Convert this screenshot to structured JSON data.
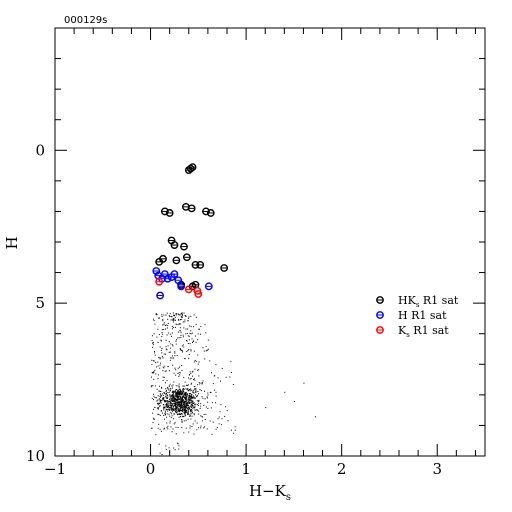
{
  "chart_data": {
    "type": "scatter",
    "title": "000129s",
    "xlabel": "H−K",
    "xlabel_sub": "s",
    "ylabel": "H",
    "xlim": [
      -1,
      3.5
    ],
    "ylim": [
      10,
      -4
    ],
    "y_inverted": true,
    "xticks": [
      -1,
      0,
      1,
      2,
      3
    ],
    "xtick_labels": [
      "−1",
      "0",
      "1",
      "2",
      "3"
    ],
    "yticks": [
      0,
      5,
      10
    ],
    "ytick_labels": [
      "0",
      "5",
      "10"
    ],
    "grid": false,
    "legend_position": "right",
    "series": [
      {
        "name": "HK",
        "name_sub": "s",
        "name_suffix": " R1 sat",
        "color": "#000000",
        "marker": "open-circle",
        "points": [
          [
            0.42,
            0.6
          ],
          [
            0.44,
            0.55
          ],
          [
            0.4,
            0.65
          ],
          [
            0.15,
            2.0
          ],
          [
            0.2,
            2.05
          ],
          [
            0.37,
            1.85
          ],
          [
            0.43,
            1.9
          ],
          [
            0.58,
            2.0
          ],
          [
            0.63,
            2.05
          ],
          [
            0.22,
            2.95
          ],
          [
            0.25,
            3.1
          ],
          [
            0.35,
            3.15
          ],
          [
            0.13,
            3.55
          ],
          [
            0.09,
            3.65
          ],
          [
            0.27,
            3.6
          ],
          [
            0.38,
            3.5
          ],
          [
            0.47,
            3.75
          ],
          [
            0.52,
            3.75
          ],
          [
            0.77,
            3.85
          ],
          [
            0.32,
            4.4
          ],
          [
            0.44,
            4.45
          ],
          [
            0.47,
            4.4
          ]
        ]
      },
      {
        "name": "H",
        "name_suffix": " R1 sat",
        "color": "#0000ff",
        "marker": "open-circle",
        "points": [
          [
            0.06,
            3.95
          ],
          [
            0.08,
            4.1
          ],
          [
            0.12,
            4.2
          ],
          [
            0.15,
            4.05
          ],
          [
            0.18,
            4.2
          ],
          [
            0.22,
            4.15
          ],
          [
            0.25,
            4.05
          ],
          [
            0.29,
            4.25
          ],
          [
            0.32,
            4.45
          ],
          [
            0.61,
            4.45
          ],
          [
            0.1,
            4.75
          ]
        ]
      },
      {
        "name": "K",
        "name_sub": "s",
        "name_suffix": " R1 sat",
        "color": "#ff0000",
        "marker": "open-circle",
        "points": [
          [
            0.09,
            4.3
          ],
          [
            0.4,
            4.55
          ],
          [
            0.49,
            4.6
          ],
          [
            0.5,
            4.7
          ]
        ]
      }
    ],
    "background_cloud": {
      "description_of_distribution": "dense cloud of faint field stars",
      "x_range": [
        0.0,
        1.1
      ],
      "y_range": [
        5.3,
        9.3
      ],
      "core_center": [
        0.3,
        8.2
      ],
      "outliers": [
        [
          1.4,
          7.9
        ],
        [
          1.6,
          7.6
        ],
        [
          1.72,
          8.7
        ],
        [
          1.5,
          8.2
        ],
        [
          1.2,
          8.4
        ]
      ],
      "count": 1400
    }
  }
}
